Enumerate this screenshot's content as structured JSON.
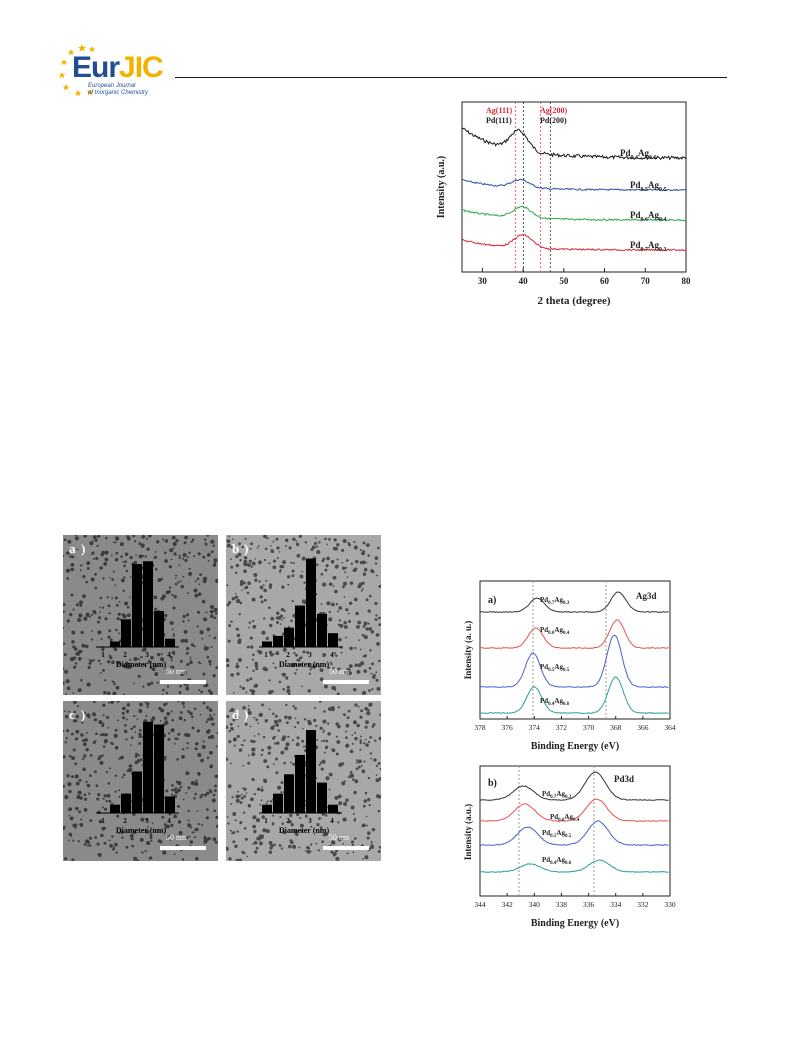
{
  "header": {
    "logo_main": "EurJIC",
    "logo_eur": "Eur",
    "logo_jic": "JIC",
    "logo_sub1": "European Journal",
    "logo_sub2": "of Inorganic Chemistry",
    "colors": {
      "brand_blue": "#1f4e93",
      "brand_yellow": "#f2b200"
    }
  },
  "xrd": {
    "peak_labels": {
      "ag111": "Ag(111)",
      "pd111": "Pd(111)",
      "ag200": "Ag(200)",
      "pd200": "Pd(200)"
    },
    "samples": [
      {
        "pd": "0.4",
        "ag": "0.6"
      },
      {
        "pd": "0.5",
        "ag": "0.5"
      },
      {
        "pd": "0.6",
        "ag": "0.4"
      },
      {
        "pd": "0.7",
        "ag": "0.3"
      }
    ],
    "xlabel": "2 theta (degree)",
    "ylabel": "Intensity (a.u.)",
    "xticks": [
      "30",
      "40",
      "50",
      "60",
      "70",
      "80"
    ]
  },
  "tem": {
    "panels": [
      {
        "label": "a",
        "scale": "50 nm"
      },
      {
        "label": "b",
        "scale": "50 nm"
      },
      {
        "label": "c",
        "scale": "50 nm"
      },
      {
        "label": "d",
        "scale": "50 nm"
      }
    ],
    "hist_xlabel": "Diameter (nm)",
    "hist_ticks": [
      "1",
      "2",
      "3",
      "4"
    ]
  },
  "xps_ag": {
    "panel": "a)",
    "label": "Ag3d",
    "xlabel": "Binding Energy (eV)",
    "ylabel": "Intensity (a. u.)",
    "xticks": [
      "378",
      "376",
      "374",
      "372",
      "370",
      "368",
      "366",
      "364"
    ],
    "samples": [
      {
        "pd": "0.7",
        "ag": "0.3"
      },
      {
        "pd": "0.6",
        "ag": "0.4"
      },
      {
        "pd": "0.5",
        "ag": "0.5"
      },
      {
        "pd": "0.4",
        "ag": "0.6"
      }
    ]
  },
  "xps_pd": {
    "panel": "b)",
    "label": "Pd3d",
    "xlabel": "Binding Energy (eV)",
    "ylabel": "Intensity (a.u.)",
    "xticks": [
      "344",
      "342",
      "340",
      "338",
      "336",
      "334",
      "332",
      "330"
    ],
    "samples": [
      {
        "pd": "0.7",
        "ag": "0.3"
      },
      {
        "pd": "0.6",
        "ag": "0.4"
      },
      {
        "pd": "0.5",
        "ag": "0.5"
      },
      {
        "pd": "0.4",
        "ag": "0.6"
      }
    ]
  },
  "chart_data": [
    {
      "type": "line",
      "title": "",
      "xlabel": "2 theta (degree)",
      "ylabel": "Intensity (a.u.)",
      "xlim": [
        25,
        80
      ],
      "reference_lines": [
        {
          "name": "Ag(111)",
          "x": 38.1
        },
        {
          "name": "Pd(111)",
          "x": 40.1
        },
        {
          "name": "Ag(200)",
          "x": 44.3
        },
        {
          "name": "Pd(200)",
          "x": 46.7
        }
      ],
      "series": [
        {
          "name": "Pd0.4Ag0.6",
          "color": "#1a1a1a",
          "peak_x": 39.0
        },
        {
          "name": "Pd0.5Ag0.5",
          "color": "#2c4fa3",
          "peak_x": 39.4
        },
        {
          "name": "Pd0.6Ag0.4",
          "color": "#2ea84a",
          "peak_x": 39.8
        },
        {
          "name": "Pd0.7Ag0.3",
          "color": "#d8283a",
          "peak_x": 40.0
        }
      ]
    },
    {
      "type": "bar",
      "title": "a",
      "xlabel": "Diameter (nm)",
      "categories": [
        "1.5",
        "2.0",
        "2.5",
        "3.0",
        "3.5",
        "4.0"
      ],
      "values": [
        2,
        10,
        30,
        31,
        13,
        3
      ]
    },
    {
      "type": "bar",
      "title": "b",
      "xlabel": "Diameter (nm)",
      "categories": [
        "1.0",
        "1.5",
        "2.0",
        "2.5",
        "3.0",
        "3.5",
        "4.0"
      ],
      "values": [
        2,
        4,
        7,
        15,
        32,
        12,
        5
      ]
    },
    {
      "type": "bar",
      "title": "c",
      "xlabel": "Diameter (nm)",
      "categories": [
        "1.5",
        "2.0",
        "2.5",
        "3.0",
        "3.5",
        "4.0"
      ],
      "values": [
        3,
        7,
        15,
        33,
        32,
        6
      ]
    },
    {
      "type": "bar",
      "title": "d",
      "xlabel": "Diameter (nm)",
      "categories": [
        "1.0",
        "1.5",
        "2.0",
        "2.5",
        "3.0",
        "3.5",
        "4.0"
      ],
      "values": [
        3,
        7,
        14,
        21,
        30,
        11,
        3
      ]
    },
    {
      "type": "line",
      "title": "",
      "xlabel": "Binding Energy (eV)",
      "ylabel": "Intensity (a. u.)",
      "xlim": [
        378,
        364
      ],
      "series": [
        {
          "name": "Pd0.7Ag0.3",
          "color": "#333333",
          "peaks": [
            373.8,
            367.8
          ]
        },
        {
          "name": "Pd0.6Ag0.4",
          "color": "#e8524f",
          "peaks": [
            373.9,
            367.9
          ]
        },
        {
          "name": "Pd0.5Ag0.5",
          "color": "#4a5fcf",
          "peaks": [
            374.1,
            368.1
          ]
        },
        {
          "name": "Pd0.4Ag0.6",
          "color": "#2e9e96",
          "peaks": [
            374.0,
            368.0
          ]
        }
      ]
    },
    {
      "type": "line",
      "title": "",
      "xlabel": "Binding Energy (eV)",
      "ylabel": "Intensity (a.u.)",
      "xlim": [
        344,
        330
      ],
      "series": [
        {
          "name": "Pd0.7Ag0.3",
          "color": "#333333",
          "peaks": [
            340.8,
            335.5
          ]
        },
        {
          "name": "Pd0.6Ag0.4",
          "color": "#e8524f",
          "peaks": [
            340.7,
            335.4
          ]
        },
        {
          "name": "Pd0.5Ag0.5",
          "color": "#4a5fcf",
          "peaks": [
            340.5,
            335.3
          ]
        },
        {
          "name": "Pd0.4Ag0.6",
          "color": "#2e9e96",
          "peaks": [
            340.3,
            335.2
          ]
        }
      ]
    }
  ]
}
